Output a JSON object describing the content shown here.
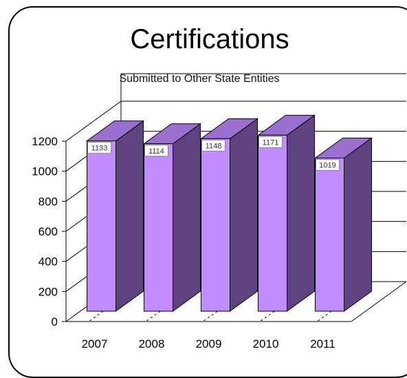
{
  "chart_data": {
    "type": "bar",
    "title": "Certifications",
    "subtitle": "Submitted to Other State Entities",
    "categories": [
      "2007",
      "2008",
      "2009",
      "2010",
      "2011"
    ],
    "values": [
      1133,
      1114,
      1148,
      1171,
      1019
    ],
    "ylim": [
      0,
      1200
    ],
    "yticks": [
      0,
      200,
      400,
      600,
      800,
      1000,
      1200
    ],
    "xlabel": "",
    "ylabel": "",
    "grid": true,
    "style": "3d",
    "colors": {
      "front": "#c08cff",
      "side": "#5e4380",
      "top": "#9b6fd0"
    }
  }
}
